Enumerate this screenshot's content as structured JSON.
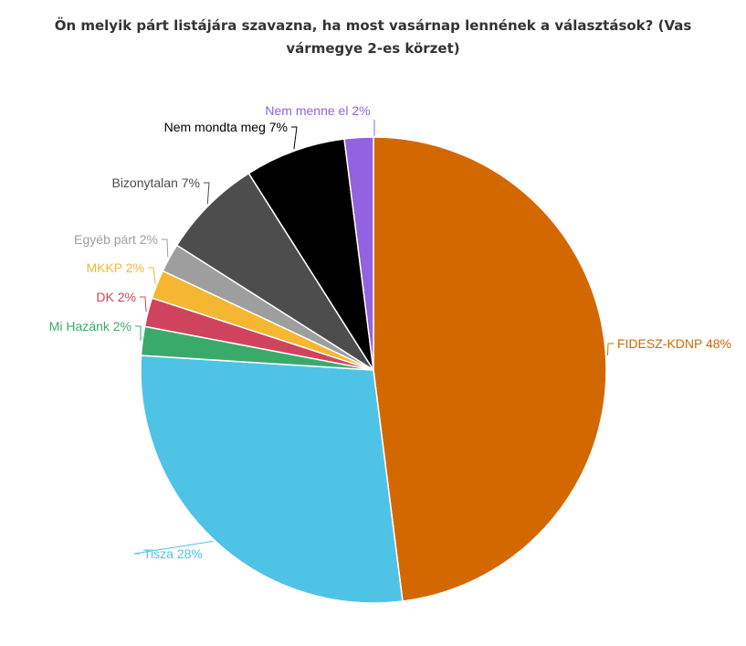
{
  "chart_data": {
    "type": "pie",
    "title": "Ön melyik párt listájára szavazna, ha most vasárnap lennének a választások? (Vas vármegye 2-es körzet)",
    "slices": [
      {
        "label": "FIDESZ-KDNP 48%",
        "category": "FIDESZ-KDNP",
        "value": 48,
        "color": "#d46800",
        "label_color": "#d46800"
      },
      {
        "label": "Tisza 28%",
        "category": "Tisza",
        "value": 28,
        "color": "#4fc3e6",
        "label_color": "#4fc3e6"
      },
      {
        "label": "Mi Hazánk 2%",
        "category": "Mi Hazánk",
        "value": 2,
        "color": "#3aaa6b",
        "label_color": "#3aaa6b"
      },
      {
        "label": "DK 2%",
        "category": "DK",
        "value": 2,
        "color": "#d0435c",
        "label_color": "#d0435c"
      },
      {
        "label": "MKKP 2%",
        "category": "MKKP",
        "value": 2,
        "color": "#f5b731",
        "label_color": "#f5b731"
      },
      {
        "label": "Egyéb párt 2%",
        "category": "Egyéb párt",
        "value": 2,
        "color": "#9e9e9e",
        "label_color": "#9e9e9e"
      },
      {
        "label": "Bizonytalan 7%",
        "category": "Bizonytalan",
        "value": 7,
        "color": "#4d4d4d",
        "label_color": "#4d4d4d"
      },
      {
        "label": "Nem mondta meg 7%",
        "category": "Nem mondta meg",
        "value": 7,
        "color": "#000000",
        "label_color": "#000000"
      },
      {
        "label": "Nem menne el 2%",
        "category": "Nem menne el",
        "value": 2,
        "color": "#9262e0",
        "label_color": "#9262e0"
      }
    ]
  }
}
